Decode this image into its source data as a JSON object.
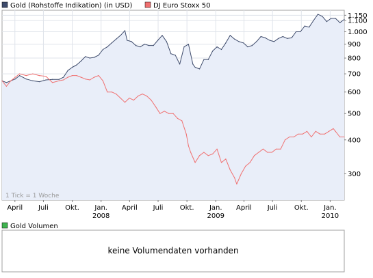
{
  "chart_data": [
    {
      "type": "line",
      "legend": [
        {
          "name": "Gold (Rohstoffe Indikation) (in USD)",
          "color": "#3d4a6b"
        },
        {
          "name": "DJ Euro Stoxx 50",
          "color": "#f07070"
        }
      ],
      "yscale": "log",
      "ylim": [
        240,
        1200
      ],
      "yticks": [
        {
          "value": 1150,
          "label": "1.150"
        },
        {
          "value": 1100,
          "label": "1.100"
        },
        {
          "value": 1000,
          "label": "1.000"
        },
        {
          "value": 900,
          "label": "900"
        },
        {
          "value": 800,
          "label": "800"
        },
        {
          "value": 700,
          "label": "700"
        },
        {
          "value": 600,
          "label": "600"
        },
        {
          "value": 500,
          "label": "500"
        },
        {
          "value": 400,
          "label": "400"
        },
        {
          "value": 300,
          "label": "300"
        }
      ],
      "xlim": [
        "2007-02-19",
        "2010-02-15"
      ],
      "xticks": [
        {
          "date": "2007-04-01",
          "label": "April"
        },
        {
          "date": "2007-07-01",
          "label": "Juli"
        },
        {
          "date": "2007-10-01",
          "label": "Okt."
        },
        {
          "date": "2008-01-01",
          "label": "Jan.",
          "year": "2008"
        },
        {
          "date": "2008-04-01",
          "label": "April"
        },
        {
          "date": "2008-07-01",
          "label": "Juli"
        },
        {
          "date": "2008-10-01",
          "label": "Okt."
        },
        {
          "date": "2009-01-01",
          "label": "Jan.",
          "year": "2009"
        },
        {
          "date": "2009-04-01",
          "label": "April"
        },
        {
          "date": "2009-07-01",
          "label": "Juli"
        },
        {
          "date": "2009-10-01",
          "label": "Okt."
        },
        {
          "date": "2010-01-01",
          "label": "Jan.",
          "year": "2010"
        }
      ],
      "grid": true,
      "annotation": "1 Tick = 1 Woche",
      "series": [
        {
          "name": "Gold (Rohstoffe Indikation) (in USD)",
          "color": "#3d4a6b",
          "area": true,
          "points": [
            [
              "2007-02-19",
              660
            ],
            [
              "2007-03-05",
              650
            ],
            [
              "2007-03-19",
              660
            ],
            [
              "2007-04-02",
              670
            ],
            [
              "2007-04-16",
              690
            ],
            [
              "2007-05-07",
              670
            ],
            [
              "2007-05-28",
              660
            ],
            [
              "2007-06-18",
              655
            ],
            [
              "2007-07-09",
              665
            ],
            [
              "2007-07-30",
              668
            ],
            [
              "2007-08-20",
              668
            ],
            [
              "2007-09-03",
              680
            ],
            [
              "2007-09-17",
              720
            ],
            [
              "2007-10-01",
              740
            ],
            [
              "2007-10-15",
              755
            ],
            [
              "2007-10-29",
              780
            ],
            [
              "2007-11-12",
              810
            ],
            [
              "2007-11-26",
              800
            ],
            [
              "2007-12-10",
              805
            ],
            [
              "2007-12-24",
              820
            ],
            [
              "2008-01-07",
              860
            ],
            [
              "2008-01-21",
              880
            ],
            [
              "2008-02-04",
              910
            ],
            [
              "2008-02-18",
              940
            ],
            [
              "2008-03-03",
              970
            ],
            [
              "2008-03-17",
              1010
            ],
            [
              "2008-03-24",
              930
            ],
            [
              "2008-04-07",
              920
            ],
            [
              "2008-04-21",
              890
            ],
            [
              "2008-05-05",
              880
            ],
            [
              "2008-05-19",
              900
            ],
            [
              "2008-06-02",
              890
            ],
            [
              "2008-06-16",
              890
            ],
            [
              "2008-06-30",
              930
            ],
            [
              "2008-07-14",
              970
            ],
            [
              "2008-07-28",
              920
            ],
            [
              "2008-08-11",
              830
            ],
            [
              "2008-08-25",
              820
            ],
            [
              "2008-09-08",
              760
            ],
            [
              "2008-09-22",
              880
            ],
            [
              "2008-10-06",
              900
            ],
            [
              "2008-10-20",
              760
            ],
            [
              "2008-10-27",
              740
            ],
            [
              "2008-11-10",
              730
            ],
            [
              "2008-11-24",
              790
            ],
            [
              "2008-12-08",
              790
            ],
            [
              "2008-12-22",
              850
            ],
            [
              "2009-01-05",
              880
            ],
            [
              "2009-01-19",
              860
            ],
            [
              "2009-02-02",
              910
            ],
            [
              "2009-02-16",
              970
            ],
            [
              "2009-03-02",
              940
            ],
            [
              "2009-03-16",
              920
            ],
            [
              "2009-03-30",
              910
            ],
            [
              "2009-04-13",
              880
            ],
            [
              "2009-04-27",
              890
            ],
            [
              "2009-05-11",
              920
            ],
            [
              "2009-05-25",
              960
            ],
            [
              "2009-06-08",
              950
            ],
            [
              "2009-06-22",
              930
            ],
            [
              "2009-07-06",
              920
            ],
            [
              "2009-07-20",
              945
            ],
            [
              "2009-08-03",
              960
            ],
            [
              "2009-08-17",
              945
            ],
            [
              "2009-08-31",
              950
            ],
            [
              "2009-09-14",
              1000
            ],
            [
              "2009-09-28",
              1000
            ],
            [
              "2009-10-12",
              1050
            ],
            [
              "2009-10-26",
              1040
            ],
            [
              "2009-11-09",
              1100
            ],
            [
              "2009-11-23",
              1160
            ],
            [
              "2009-12-07",
              1140
            ],
            [
              "2009-12-21",
              1090
            ],
            [
              "2010-01-04",
              1120
            ],
            [
              "2010-01-18",
              1120
            ],
            [
              "2010-02-01",
              1080
            ],
            [
              "2010-02-15",
              1110
            ]
          ]
        },
        {
          "name": "DJ Euro Stoxx 50",
          "color": "#f07070",
          "area": false,
          "points": [
            [
              "2007-02-19",
              660
            ],
            [
              "2007-03-05",
              630
            ],
            [
              "2007-03-19",
              660
            ],
            [
              "2007-04-02",
              680
            ],
            [
              "2007-04-16",
              700
            ],
            [
              "2007-05-07",
              690
            ],
            [
              "2007-05-28",
              700
            ],
            [
              "2007-06-18",
              690
            ],
            [
              "2007-07-09",
              685
            ],
            [
              "2007-07-30",
              650
            ],
            [
              "2007-08-20",
              660
            ],
            [
              "2007-09-03",
              665
            ],
            [
              "2007-09-17",
              680
            ],
            [
              "2007-10-01",
              690
            ],
            [
              "2007-10-15",
              690
            ],
            [
              "2007-10-29",
              680
            ],
            [
              "2007-11-12",
              670
            ],
            [
              "2007-11-26",
              665
            ],
            [
              "2007-12-10",
              680
            ],
            [
              "2007-12-24",
              690
            ],
            [
              "2008-01-07",
              660
            ],
            [
              "2008-01-21",
              600
            ],
            [
              "2008-02-04",
              600
            ],
            [
              "2008-02-18",
              590
            ],
            [
              "2008-03-03",
              570
            ],
            [
              "2008-03-17",
              550
            ],
            [
              "2008-03-31",
              570
            ],
            [
              "2008-04-14",
              560
            ],
            [
              "2008-04-28",
              580
            ],
            [
              "2008-05-12",
              590
            ],
            [
              "2008-05-26",
              580
            ],
            [
              "2008-06-09",
              560
            ],
            [
              "2008-06-23",
              530
            ],
            [
              "2008-07-07",
              500
            ],
            [
              "2008-07-21",
              510
            ],
            [
              "2008-08-04",
              500
            ],
            [
              "2008-08-18",
              500
            ],
            [
              "2008-09-01",
              480
            ],
            [
              "2008-09-15",
              470
            ],
            [
              "2008-09-29",
              420
            ],
            [
              "2008-10-06",
              380
            ],
            [
              "2008-10-13",
              360
            ],
            [
              "2008-10-27",
              330
            ],
            [
              "2008-11-10",
              350
            ],
            [
              "2008-11-24",
              360
            ],
            [
              "2008-12-08",
              350
            ],
            [
              "2008-12-22",
              355
            ],
            [
              "2009-01-05",
              370
            ],
            [
              "2009-01-19",
              330
            ],
            [
              "2009-02-02",
              340
            ],
            [
              "2009-02-16",
              310
            ],
            [
              "2009-03-02",
              290
            ],
            [
              "2009-03-09",
              275
            ],
            [
              "2009-03-23",
              300
            ],
            [
              "2009-04-06",
              320
            ],
            [
              "2009-04-20",
              330
            ],
            [
              "2009-05-04",
              350
            ],
            [
              "2009-05-18",
              360
            ],
            [
              "2009-06-01",
              370
            ],
            [
              "2009-06-15",
              360
            ],
            [
              "2009-06-29",
              360
            ],
            [
              "2009-07-13",
              370
            ],
            [
              "2009-07-27",
              370
            ],
            [
              "2009-08-10",
              400
            ],
            [
              "2009-08-24",
              410
            ],
            [
              "2009-09-07",
              410
            ],
            [
              "2009-09-21",
              420
            ],
            [
              "2009-10-05",
              420
            ],
            [
              "2009-10-19",
              430
            ],
            [
              "2009-11-02",
              410
            ],
            [
              "2009-11-16",
              430
            ],
            [
              "2009-11-30",
              420
            ],
            [
              "2009-12-14",
              420
            ],
            [
              "2009-12-28",
              430
            ],
            [
              "2010-01-11",
              440
            ],
            [
              "2010-01-18",
              430
            ],
            [
              "2010-02-01",
              410
            ],
            [
              "2010-02-15",
              410
            ]
          ]
        }
      ]
    },
    {
      "type": "bar",
      "legend": [
        {
          "name": "Gold Volumen",
          "color": "#3fb34f"
        }
      ],
      "message": "keine Volumendaten vorhanden",
      "series": []
    }
  ]
}
